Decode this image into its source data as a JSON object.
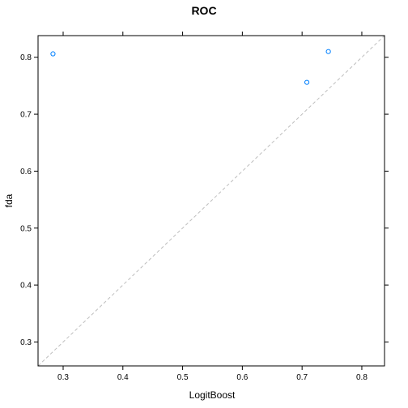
{
  "chart_data": {
    "type": "scatter",
    "title": "ROC",
    "xlabel": "LogitBoost",
    "ylabel": "fda",
    "xlim": [
      0.258,
      0.838
    ],
    "ylim": [
      0.258,
      0.838
    ],
    "x_ticks": [
      0.3,
      0.4,
      0.5,
      0.6,
      0.7,
      0.8
    ],
    "y_ticks": [
      0.3,
      0.4,
      0.5,
      0.6,
      0.7,
      0.8
    ],
    "x_tick_labels": [
      "0.3",
      "0.4",
      "0.5",
      "0.6",
      "0.7",
      "0.8"
    ],
    "y_tick_labels": [
      "0.3",
      "0.4",
      "0.5",
      "0.6",
      "0.7",
      "0.8"
    ],
    "reference_line": "identity (y = x), dashed gray",
    "points": [
      {
        "x": 0.283,
        "y": 0.806
      },
      {
        "x": 0.708,
        "y": 0.756
      },
      {
        "x": 0.744,
        "y": 0.81
      }
    ],
    "point_color": "#0080ff",
    "frame_color": "#000000",
    "reference_line_color": "#bebebe",
    "grid": false,
    "legend": "none"
  }
}
